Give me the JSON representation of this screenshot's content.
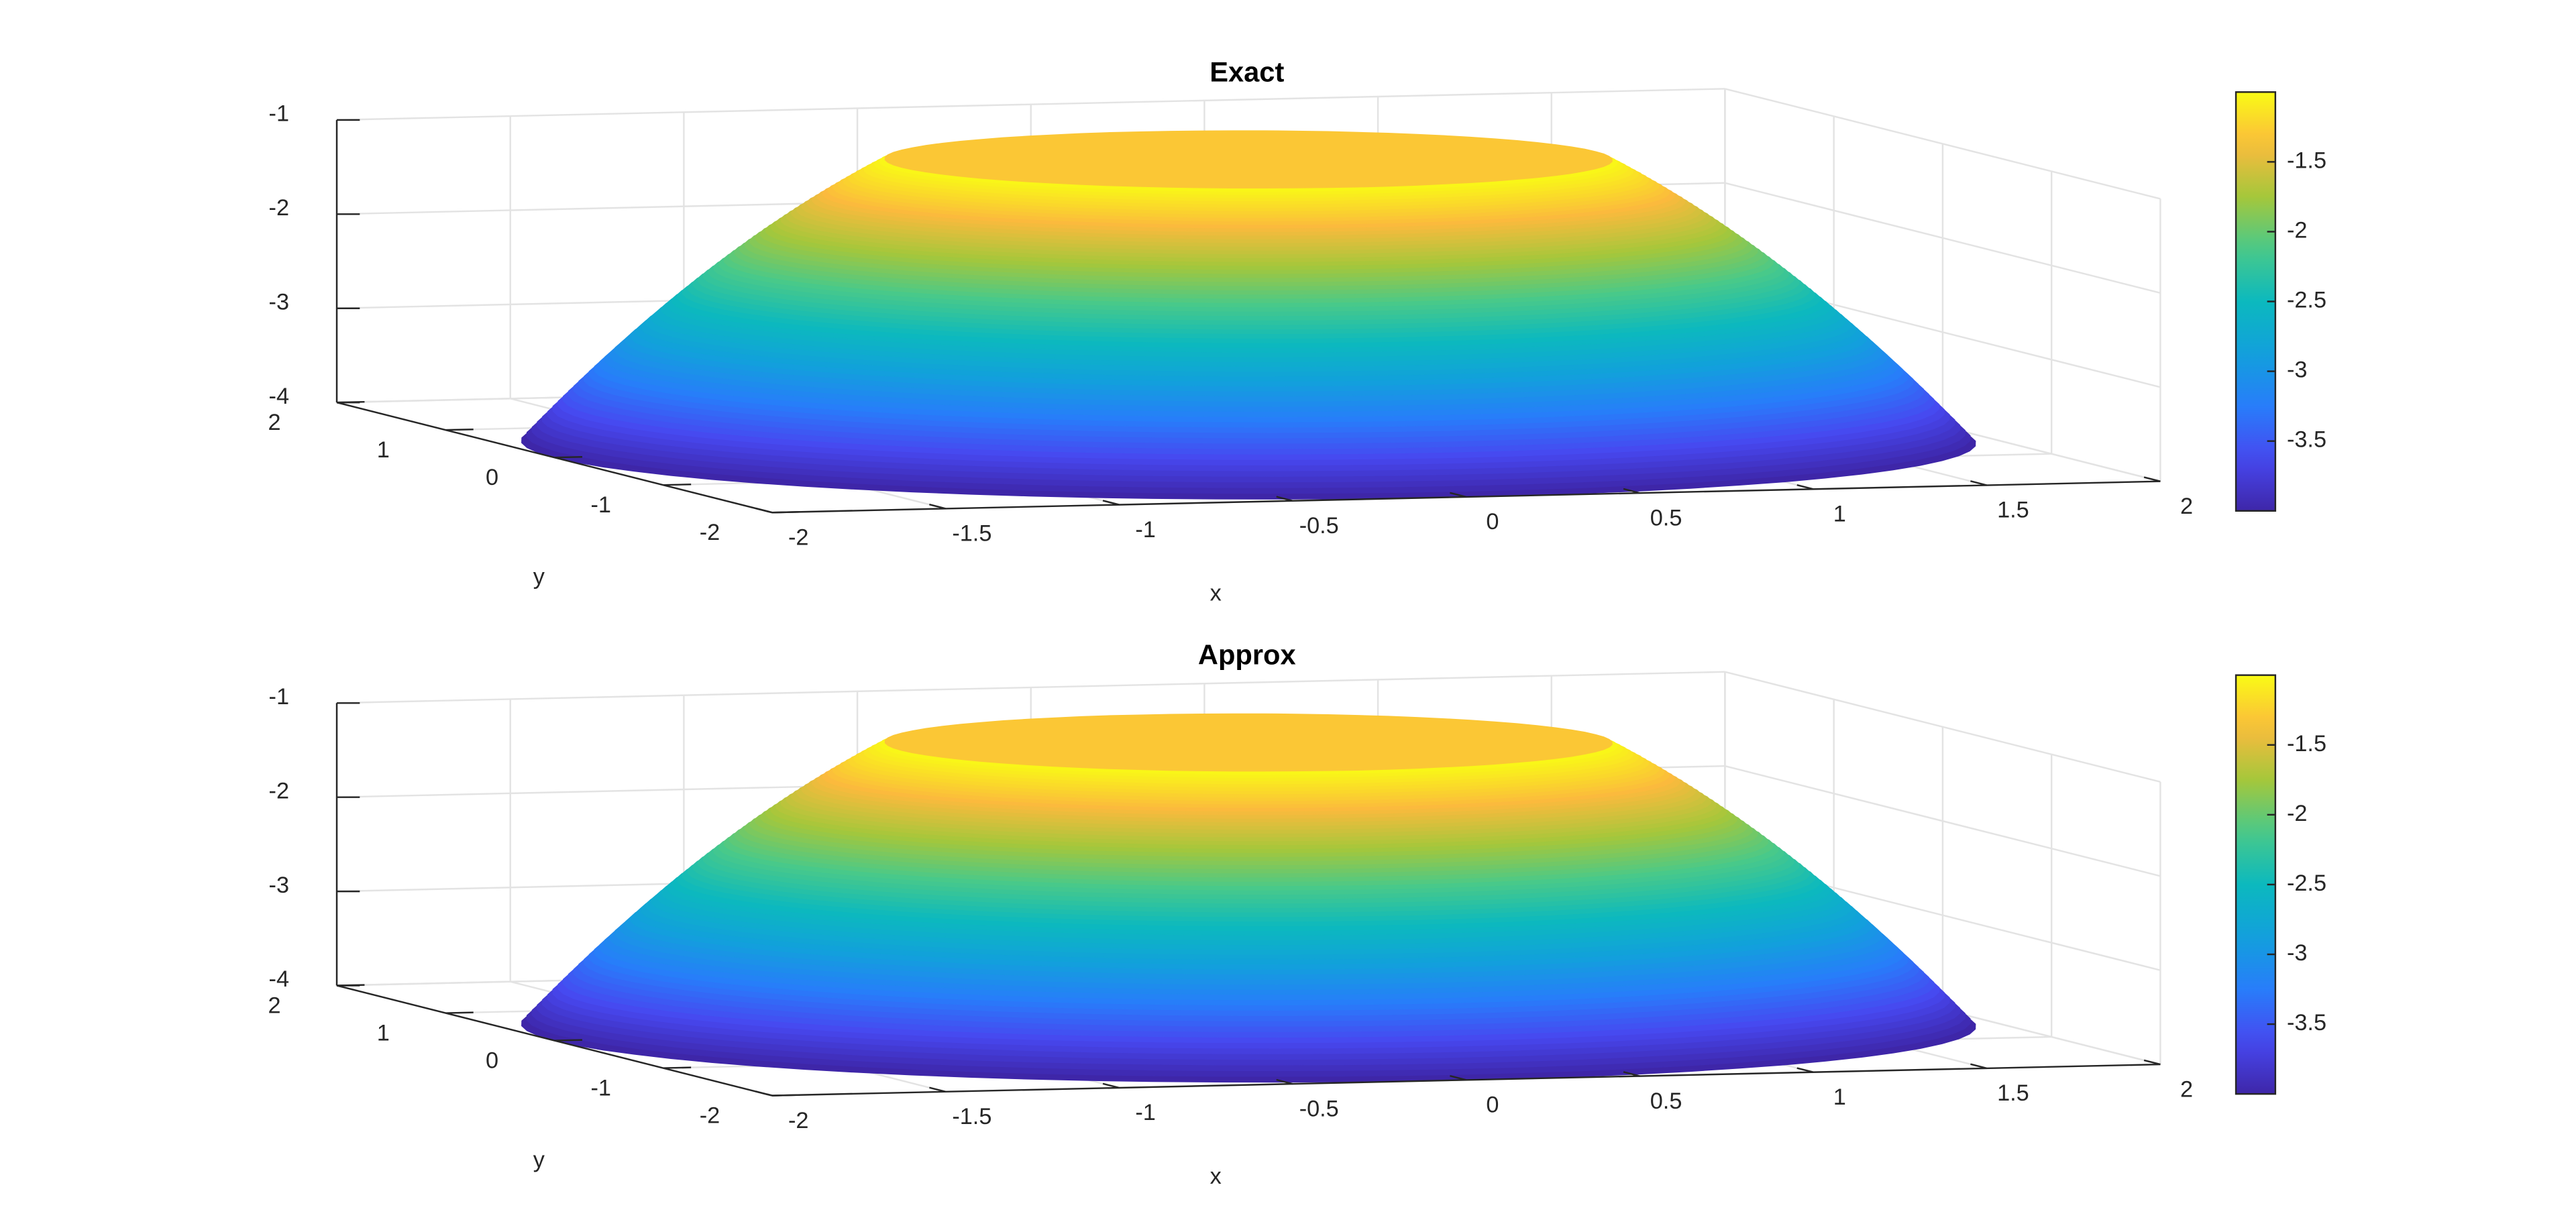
{
  "chart_data": [
    {
      "type": "surface",
      "title": "Exact",
      "xlabel": "x",
      "ylabel": "y",
      "xlim": [
        -2,
        2
      ],
      "ylim": [
        -2,
        2
      ],
      "zlim": [
        -4,
        -1
      ],
      "xticks": [
        -2,
        -1.5,
        -1,
        -0.5,
        0,
        0.5,
        1,
        1.5,
        2
      ],
      "yticks": [
        -2,
        -1,
        0,
        1,
        2
      ],
      "zticks": [
        -4,
        -3,
        -2,
        -1
      ],
      "grid": true,
      "colormap": "parula",
      "colorbar": {
        "clim": [
          -4,
          -1
        ],
        "ticks": [
          -3.5,
          -3,
          -2.5,
          -2,
          -1.5
        ]
      }
    },
    {
      "type": "surface",
      "title": "Approx",
      "xlabel": "x",
      "ylabel": "y",
      "xlim": [
        -2,
        2
      ],
      "ylim": [
        -2,
        2
      ],
      "zlim": [
        -4,
        -1
      ],
      "xticks": [
        -2,
        -1.5,
        -1,
        -0.5,
        0,
        0.5,
        1,
        1.5,
        2
      ],
      "yticks": [
        -2,
        -1,
        0,
        1,
        2
      ],
      "zticks": [
        -4,
        -3,
        -2,
        -1
      ],
      "grid": true,
      "colormap": "parula",
      "colorbar": {
        "clim": [
          -4,
          -1
        ],
        "ticks": [
          -3.5,
          -3,
          -2.5,
          -2,
          -1.5
        ]
      }
    }
  ]
}
